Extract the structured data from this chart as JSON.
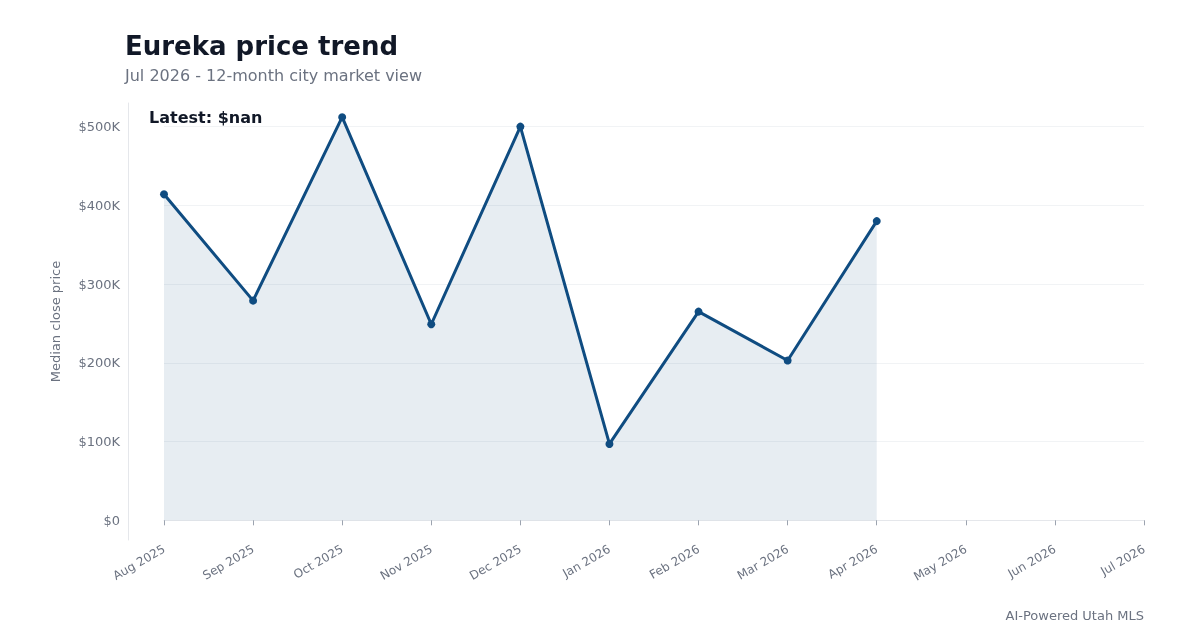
{
  "chart_data": {
    "type": "area",
    "title": "Eureka price trend",
    "subtitle": "Jul 2026 - 12-month city market view",
    "ylabel": "Median close price",
    "categories": [
      "Aug 2025",
      "Sep 2025",
      "Oct 2025",
      "Nov 2025",
      "Dec 2025",
      "Jan 2026",
      "Feb 2026",
      "Mar 2026",
      "Apr 2026",
      "May 2026",
      "Jun 2026",
      "Jul 2026"
    ],
    "series": [
      {
        "color": "#0f4c81",
        "values": [
          414000,
          279000,
          512000,
          249000,
          500000,
          97000,
          265000,
          203000,
          380000,
          null,
          null,
          null
        ]
      }
    ],
    "ylim": [
      -25000,
      530000
    ],
    "yticks": [
      {
        "value": 0,
        "label": "$0"
      },
      {
        "value": 100000,
        "label": "$100K"
      },
      {
        "value": 200000,
        "label": "$200K"
      },
      {
        "value": 300000,
        "label": "$300K"
      },
      {
        "value": 400000,
        "label": "$400K"
      },
      {
        "value": 500000,
        "label": "$500K"
      }
    ],
    "grid": "y",
    "marker": "circle",
    "line_style": "solid",
    "annotations": [
      "Latest: $nan",
      "AI-Powered Utah MLS"
    ]
  }
}
